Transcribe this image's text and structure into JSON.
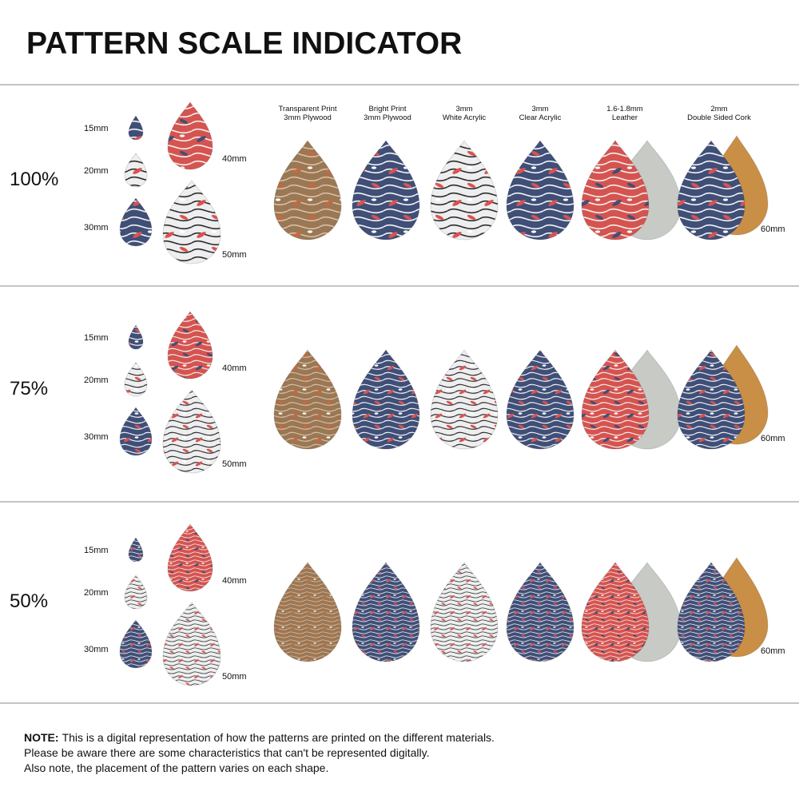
{
  "header": {
    "title": "PATTERN SCALE INDICATOR"
  },
  "materials": [
    [
      "Transparent Print",
      "3mm Plywood"
    ],
    [
      "Bright Print",
      "3mm Plywood"
    ],
    [
      "3mm",
      "White Acrylic"
    ],
    [
      "3mm",
      "Clear Acrylic"
    ],
    [
      "1.6-1.8mm",
      "Leather"
    ],
    [
      "2mm",
      "Double Sided Cork"
    ]
  ],
  "rows": [
    {
      "scale": "100%",
      "sizes": [
        "15mm",
        "20mm",
        "30mm",
        "40mm",
        "50mm",
        "60mm"
      ]
    },
    {
      "scale": "75%",
      "sizes": [
        "15mm",
        "20mm",
        "30mm",
        "40mm",
        "50mm",
        "60mm"
      ]
    },
    {
      "scale": "50%",
      "sizes": [
        "15mm",
        "20mm",
        "30mm",
        "40mm",
        "50mm",
        "60mm"
      ]
    }
  ],
  "note": {
    "label": "NOTE:",
    "lines": [
      "This is a digital representation of how the patterns are printed on the different materials.",
      "Please be aware there are some characteristics that can't be represented digitally.",
      "Also note, the placement of the pattern varies on each shape."
    ]
  }
}
